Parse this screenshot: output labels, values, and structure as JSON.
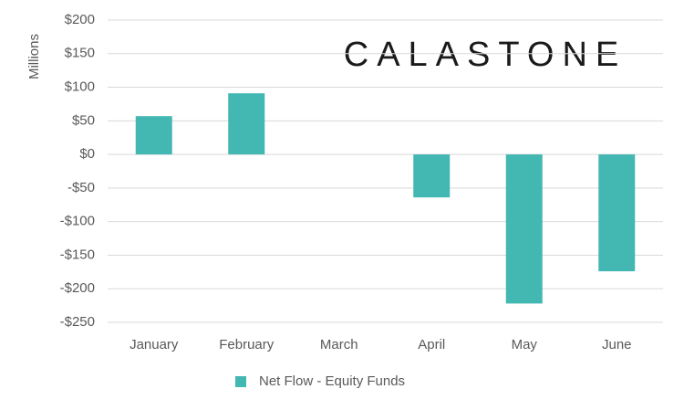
{
  "chart_data": {
    "type": "bar",
    "logo": "CALASTONE",
    "y_label": "Millions",
    "categories": [
      "January",
      "February",
      "March",
      "April",
      "May",
      "June"
    ],
    "series": [
      {
        "name": "Net Flow - Equity Funds",
        "color": "#43b7b1",
        "values": [
          57,
          91,
          0,
          -64,
          -222,
          -174
        ]
      }
    ],
    "ylim": [
      -250,
      200
    ],
    "yticks": [
      {
        "value": -250,
        "label": "-$250"
      },
      {
        "value": -200,
        "label": "-$200"
      },
      {
        "value": -150,
        "label": "-$150"
      },
      {
        "value": -100,
        "label": "-$100"
      },
      {
        "value": -50,
        "label": "-$50"
      },
      {
        "value": 0,
        "label": "$0"
      },
      {
        "value": 50,
        "label": "$50"
      },
      {
        "value": 100,
        "label": "$100"
      },
      {
        "value": 150,
        "label": "$150"
      },
      {
        "value": 200,
        "label": "$200"
      }
    ],
    "grid": true,
    "legend": "bottom"
  }
}
